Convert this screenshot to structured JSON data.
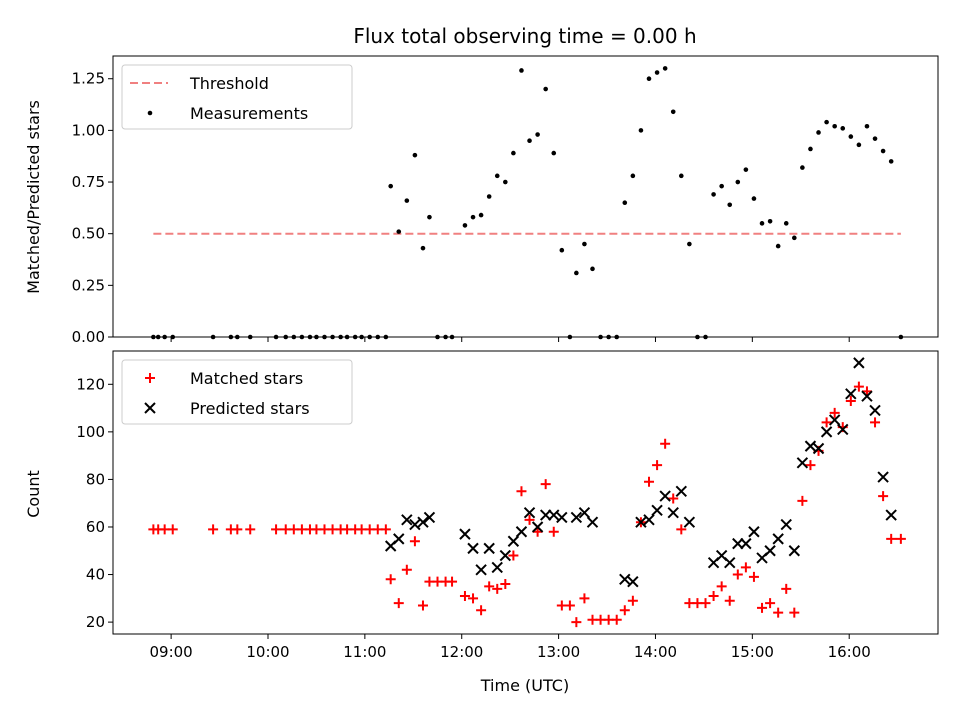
{
  "chart_data": [
    {
      "type": "scatter",
      "title": "Flux total observing time = 0.00 h",
      "xlabel": "",
      "ylabel": "Matched/Predicted stars",
      "xlim": [
        "08:24",
        "16:55"
      ],
      "ylim": [
        0,
        1.36
      ],
      "yticks": [
        0.0,
        0.25,
        0.5,
        0.75,
        1.0,
        1.25
      ],
      "ytick_labels": [
        "0.00",
        "0.25",
        "0.50",
        "0.75",
        "1.00",
        "1.25"
      ],
      "legend_position": "top-left",
      "grid": false,
      "series": [
        {
          "name": "Threshold",
          "style": "dashed-line",
          "color": "#f08080",
          "points": [
            [
              "08:49",
              0.5
            ],
            [
              "16:32",
              0.5
            ]
          ]
        },
        {
          "name": "Measurements",
          "style": "dot",
          "color": "#000000",
          "points": [
            [
              "08:49",
              0.0
            ],
            [
              "08:52",
              0.0
            ],
            [
              "08:56",
              0.0
            ],
            [
              "09:01",
              0.0
            ],
            [
              "09:26",
              0.0
            ],
            [
              "09:37",
              0.0
            ],
            [
              "09:41",
              0.0
            ],
            [
              "09:49",
              0.0
            ],
            [
              "10:05",
              0.0
            ],
            [
              "10:11",
              0.0
            ],
            [
              "10:16",
              0.0
            ],
            [
              "10:21",
              0.0
            ],
            [
              "10:26",
              0.0
            ],
            [
              "10:30",
              0.0
            ],
            [
              "10:35",
              0.0
            ],
            [
              "10:40",
              0.0
            ],
            [
              "10:45",
              0.0
            ],
            [
              "10:49",
              0.0
            ],
            [
              "10:54",
              0.0
            ],
            [
              "10:58",
              0.0
            ],
            [
              "11:03",
              0.0
            ],
            [
              "11:08",
              0.0
            ],
            [
              "11:13",
              0.0
            ],
            [
              "11:16",
              0.73
            ],
            [
              "11:21",
              0.51
            ],
            [
              "11:26",
              0.66
            ],
            [
              "11:31",
              0.88
            ],
            [
              "11:36",
              0.43
            ],
            [
              "11:40",
              0.58
            ],
            [
              "11:45",
              0.0
            ],
            [
              "11:50",
              0.0
            ],
            [
              "11:54",
              0.0
            ],
            [
              "12:02",
              0.54
            ],
            [
              "12:07",
              0.58
            ],
            [
              "12:12",
              0.59
            ],
            [
              "12:17",
              0.68
            ],
            [
              "12:22",
              0.78
            ],
            [
              "12:27",
              0.75
            ],
            [
              "12:32",
              0.89
            ],
            [
              "12:37",
              1.29
            ],
            [
              "12:42",
              0.95
            ],
            [
              "12:47",
              0.98
            ],
            [
              "12:52",
              1.2
            ],
            [
              "12:57",
              0.89
            ],
            [
              "13:02",
              0.42
            ],
            [
              "13:07",
              0.0
            ],
            [
              "13:11",
              0.31
            ],
            [
              "13:16",
              0.45
            ],
            [
              "13:21",
              0.33
            ],
            [
              "13:26",
              0.0
            ],
            [
              "13:31",
              0.0
            ],
            [
              "13:36",
              0.0
            ],
            [
              "13:41",
              0.65
            ],
            [
              "13:46",
              0.78
            ],
            [
              "13:51",
              1.0
            ],
            [
              "13:56",
              1.25
            ],
            [
              "14:01",
              1.28
            ],
            [
              "14:06",
              1.3
            ],
            [
              "14:11",
              1.09
            ],
            [
              "14:16",
              0.78
            ],
            [
              "14:21",
              0.45
            ],
            [
              "14:26",
              0.0
            ],
            [
              "14:31",
              0.0
            ],
            [
              "14:36",
              0.69
            ],
            [
              "14:41",
              0.73
            ],
            [
              "14:46",
              0.64
            ],
            [
              "14:51",
              0.75
            ],
            [
              "14:56",
              0.81
            ],
            [
              "15:01",
              0.67
            ],
            [
              "15:06",
              0.55
            ],
            [
              "15:11",
              0.56
            ],
            [
              "15:16",
              0.44
            ],
            [
              "15:21",
              0.55
            ],
            [
              "15:26",
              0.48
            ],
            [
              "15:31",
              0.82
            ],
            [
              "15:36",
              0.91
            ],
            [
              "15:41",
              0.99
            ],
            [
              "15:46",
              1.04
            ],
            [
              "15:51",
              1.02
            ],
            [
              "15:56",
              1.01
            ],
            [
              "16:01",
              0.97
            ],
            [
              "16:06",
              0.93
            ],
            [
              "16:11",
              1.02
            ],
            [
              "16:16",
              0.96
            ],
            [
              "16:21",
              0.9
            ],
            [
              "16:26",
              0.85
            ],
            [
              "16:32",
              0.0
            ]
          ]
        }
      ]
    },
    {
      "type": "scatter",
      "title": "",
      "xlabel": "Time (UTC)",
      "ylabel": "Count",
      "xlim": [
        "08:24",
        "16:55"
      ],
      "ylim": [
        15,
        134
      ],
      "xticks": [
        "09:00",
        "10:00",
        "11:00",
        "12:00",
        "13:00",
        "14:00",
        "15:00",
        "16:00"
      ],
      "yticks": [
        20,
        40,
        60,
        80,
        100,
        120
      ],
      "legend_position": "top-left",
      "grid": false,
      "series": [
        {
          "name": "Matched stars",
          "style": "plus",
          "color": "#ff0000",
          "points": [
            [
              "08:49",
              59
            ],
            [
              "08:52",
              59
            ],
            [
              "08:56",
              59
            ],
            [
              "09:01",
              59
            ],
            [
              "09:26",
              59
            ],
            [
              "09:37",
              59
            ],
            [
              "09:41",
              59
            ],
            [
              "09:49",
              59
            ],
            [
              "10:05",
              59
            ],
            [
              "10:11",
              59
            ],
            [
              "10:16",
              59
            ],
            [
              "10:21",
              59
            ],
            [
              "10:26",
              59
            ],
            [
              "10:30",
              59
            ],
            [
              "10:35",
              59
            ],
            [
              "10:40",
              59
            ],
            [
              "10:45",
              59
            ],
            [
              "10:49",
              59
            ],
            [
              "10:54",
              59
            ],
            [
              "10:58",
              59
            ],
            [
              "11:03",
              59
            ],
            [
              "11:08",
              59
            ],
            [
              "11:13",
              59
            ],
            [
              "11:16",
              38
            ],
            [
              "11:21",
              28
            ],
            [
              "11:26",
              42
            ],
            [
              "11:31",
              54
            ],
            [
              "11:36",
              27
            ],
            [
              "11:40",
              37
            ],
            [
              "11:45",
              37
            ],
            [
              "11:50",
              37
            ],
            [
              "11:54",
              37
            ],
            [
              "12:02",
              31
            ],
            [
              "12:07",
              30
            ],
            [
              "12:12",
              25
            ],
            [
              "12:17",
              35
            ],
            [
              "12:22",
              34
            ],
            [
              "12:27",
              36
            ],
            [
              "12:32",
              48
            ],
            [
              "12:37",
              75
            ],
            [
              "12:42",
              63
            ],
            [
              "12:47",
              58
            ],
            [
              "12:52",
              78
            ],
            [
              "12:57",
              58
            ],
            [
              "13:02",
              27
            ],
            [
              "13:07",
              27
            ],
            [
              "13:11",
              20
            ],
            [
              "13:16",
              30
            ],
            [
              "13:21",
              21
            ],
            [
              "13:26",
              21
            ],
            [
              "13:31",
              21
            ],
            [
              "13:36",
              21
            ],
            [
              "13:41",
              25
            ],
            [
              "13:46",
              29
            ],
            [
              "13:51",
              62
            ],
            [
              "13:56",
              79
            ],
            [
              "14:01",
              86
            ],
            [
              "14:06",
              95
            ],
            [
              "14:11",
              72
            ],
            [
              "14:16",
              59
            ],
            [
              "14:21",
              28
            ],
            [
              "14:26",
              28
            ],
            [
              "14:31",
              28
            ],
            [
              "14:36",
              31
            ],
            [
              "14:41",
              35
            ],
            [
              "14:46",
              29
            ],
            [
              "14:51",
              40
            ],
            [
              "14:56",
              43
            ],
            [
              "15:01",
              39
            ],
            [
              "15:06",
              26
            ],
            [
              "15:11",
              28
            ],
            [
              "15:16",
              24
            ],
            [
              "15:21",
              34
            ],
            [
              "15:26",
              24
            ],
            [
              "15:31",
              71
            ],
            [
              "15:36",
              86
            ],
            [
              "15:41",
              92
            ],
            [
              "15:46",
              104
            ],
            [
              "15:51",
              108
            ],
            [
              "15:56",
              102
            ],
            [
              "16:01",
              113
            ],
            [
              "16:06",
              119
            ],
            [
              "16:11",
              117
            ],
            [
              "16:16",
              104
            ],
            [
              "16:21",
              73
            ],
            [
              "16:26",
              55
            ],
            [
              "16:32",
              55
            ]
          ]
        },
        {
          "name": "Predicted stars",
          "style": "x",
          "color": "#000000",
          "points": [
            [
              "11:16",
              52
            ],
            [
              "11:21",
              55
            ],
            [
              "11:26",
              63
            ],
            [
              "11:31",
              61
            ],
            [
              "11:36",
              62
            ],
            [
              "11:40",
              64
            ],
            [
              "12:02",
              57
            ],
            [
              "12:07",
              51
            ],
            [
              "12:12",
              42
            ],
            [
              "12:17",
              51
            ],
            [
              "12:22",
              43
            ],
            [
              "12:27",
              48
            ],
            [
              "12:32",
              54
            ],
            [
              "12:37",
              58
            ],
            [
              "12:42",
              66
            ],
            [
              "12:47",
              60
            ],
            [
              "12:52",
              65
            ],
            [
              "12:57",
              65
            ],
            [
              "13:02",
              64
            ],
            [
              "13:11",
              64
            ],
            [
              "13:16",
              66
            ],
            [
              "13:21",
              62
            ],
            [
              "13:41",
              38
            ],
            [
              "13:46",
              37
            ],
            [
              "13:51",
              62
            ],
            [
              "13:56",
              63
            ],
            [
              "14:01",
              67
            ],
            [
              "14:06",
              73
            ],
            [
              "14:11",
              66
            ],
            [
              "14:16",
              75
            ],
            [
              "14:21",
              62
            ],
            [
              "14:36",
              45
            ],
            [
              "14:41",
              48
            ],
            [
              "14:46",
              45
            ],
            [
              "14:51",
              53
            ],
            [
              "14:56",
              53
            ],
            [
              "15:01",
              58
            ],
            [
              "15:06",
              47
            ],
            [
              "15:11",
              50
            ],
            [
              "15:16",
              55
            ],
            [
              "15:21",
              61
            ],
            [
              "15:26",
              50
            ],
            [
              "15:31",
              87
            ],
            [
              "15:36",
              94
            ],
            [
              "15:41",
              93
            ],
            [
              "15:46",
              100
            ],
            [
              "15:51",
              105
            ],
            [
              "15:56",
              101
            ],
            [
              "16:01",
              116
            ],
            [
              "16:06",
              129
            ],
            [
              "16:11",
              115
            ],
            [
              "16:16",
              109
            ],
            [
              "16:21",
              81
            ],
            [
              "16:26",
              65
            ]
          ]
        }
      ]
    }
  ]
}
